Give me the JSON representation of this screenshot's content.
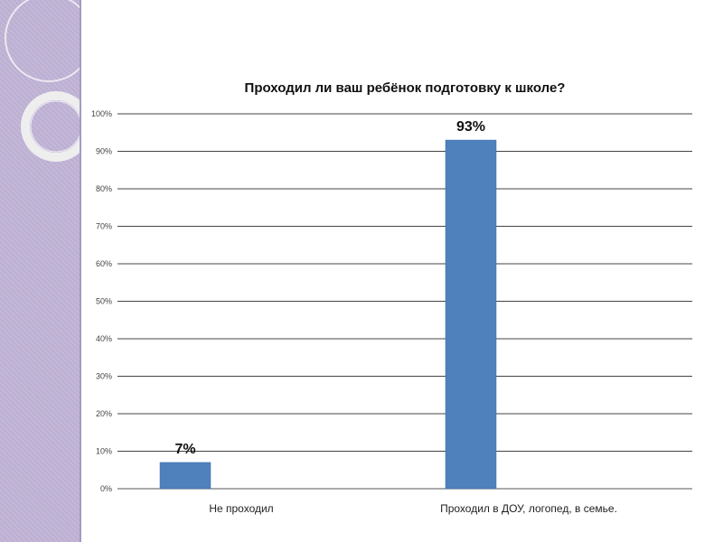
{
  "chart_data": {
    "type": "bar",
    "title": "Проходил ли ваш ребёнок подготовку к школе?",
    "categories": [
      "Не проходил",
      "Проходил в ДОУ, логопед, в семье."
    ],
    "values": [
      7,
      93
    ],
    "data_labels": [
      "7%",
      "93%"
    ],
    "ylim": [
      0,
      100
    ],
    "y_ticks": [
      0,
      10,
      20,
      30,
      40,
      50,
      60,
      70,
      80,
      90,
      100
    ],
    "y_tick_labels": [
      "0%",
      "10%",
      "20%",
      "30%",
      "40%",
      "50%",
      "60%",
      "70%",
      "80%",
      "90%",
      "100%"
    ],
    "grid": true,
    "legend": "none",
    "bar_color": "#4f81bd"
  }
}
